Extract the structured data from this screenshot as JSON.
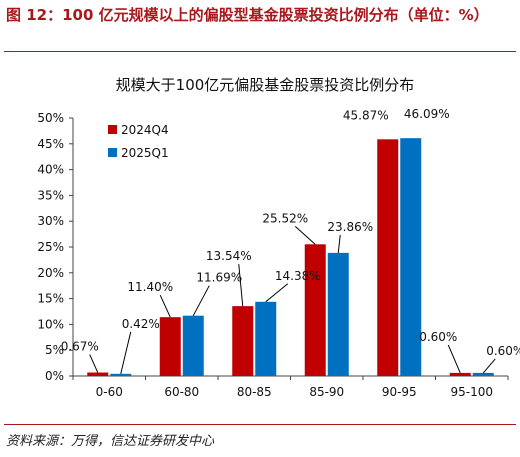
{
  "figure": {
    "title": "图 12：100 亿元规模以上的偏股型基金股票投资比例分布（单位：%）",
    "source": "资料来源：万得，信达证券研发中心"
  },
  "colors": {
    "series1": "#c00000",
    "series2": "#0070c0",
    "accent": "#a8181c"
  },
  "chart_data": {
    "type": "bar",
    "title": "规模大于100亿元偏股基金股票投资比例分布",
    "categories": [
      "0-60",
      "60-80",
      "80-85",
      "85-90",
      "90-95",
      "95-100"
    ],
    "series": [
      {
        "name": "2024Q4",
        "values": [
          0.67,
          11.4,
          13.54,
          25.52,
          45.87,
          0.6
        ],
        "labels": [
          "0.67%",
          "11.40%",
          "13.54%",
          "25.52%",
          "45.87%",
          "0.60%"
        ]
      },
      {
        "name": "2025Q1",
        "values": [
          0.42,
          11.69,
          14.38,
          23.86,
          46.09,
          0.6
        ],
        "labels": [
          "0.42%",
          "11.69%",
          "14.38%",
          "23.86%",
          "46.09%",
          "0.60%"
        ]
      }
    ],
    "y_ticks": [
      "0%",
      "5%",
      "10%",
      "15%",
      "20%",
      "25%",
      "30%",
      "35%",
      "40%",
      "45%",
      "50%"
    ],
    "ylim": [
      0,
      50
    ],
    "legend": "top-left",
    "grid": false
  }
}
